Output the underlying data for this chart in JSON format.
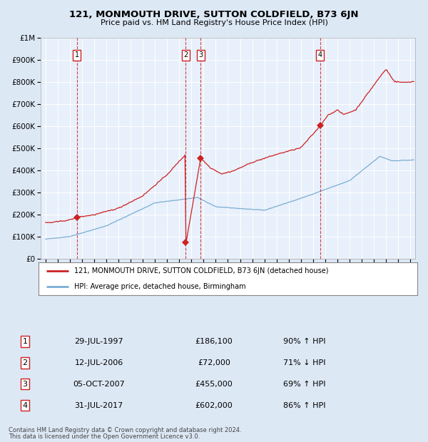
{
  "title": "121, MONMOUTH DRIVE, SUTTON COLDFIELD, B73 6JN",
  "subtitle": "Price paid vs. HM Land Registry's House Price Index (HPI)",
  "legend_line1": "121, MONMOUTH DRIVE, SUTTON COLDFIELD, B73 6JN (detached house)",
  "legend_line2": "HPI: Average price, detached house, Birmingham",
  "footer_line1": "Contains HM Land Registry data © Crown copyright and database right 2024.",
  "footer_line2": "This data is licensed under the Open Government Licence v3.0.",
  "transactions": [
    {
      "num": 1,
      "date": "29-JUL-1997",
      "price": 186100,
      "price_str": "£186,100",
      "pct": "90%",
      "dir": "↑",
      "year": 1997.57
    },
    {
      "num": 2,
      "date": "12-JUL-2006",
      "price": 72000,
      "price_str": "£72,000",
      "pct": "71%",
      "dir": "↓",
      "year": 2006.53
    },
    {
      "num": 3,
      "date": "05-OCT-2007",
      "price": 455000,
      "price_str": "£455,000",
      "pct": "69%",
      "dir": "↑",
      "year": 2007.76
    },
    {
      "num": 4,
      "date": "31-JUL-2017",
      "price": 602000,
      "price_str": "£602,000",
      "pct": "86%",
      "dir": "↑",
      "year": 2017.58
    }
  ],
  "bg_color": "#dde8f5",
  "plot_bg": "#e8f0fb",
  "red_line": "#cc2222",
  "blue_line": "#7aadd4",
  "grid_color": "#ffffff",
  "ylim": [
    0,
    1000000
  ],
  "yticks": [
    0,
    100000,
    200000,
    300000,
    400000,
    500000,
    600000,
    700000,
    800000,
    900000,
    1000000
  ],
  "xlim_start": 1994.6,
  "xlim_end": 2025.4
}
